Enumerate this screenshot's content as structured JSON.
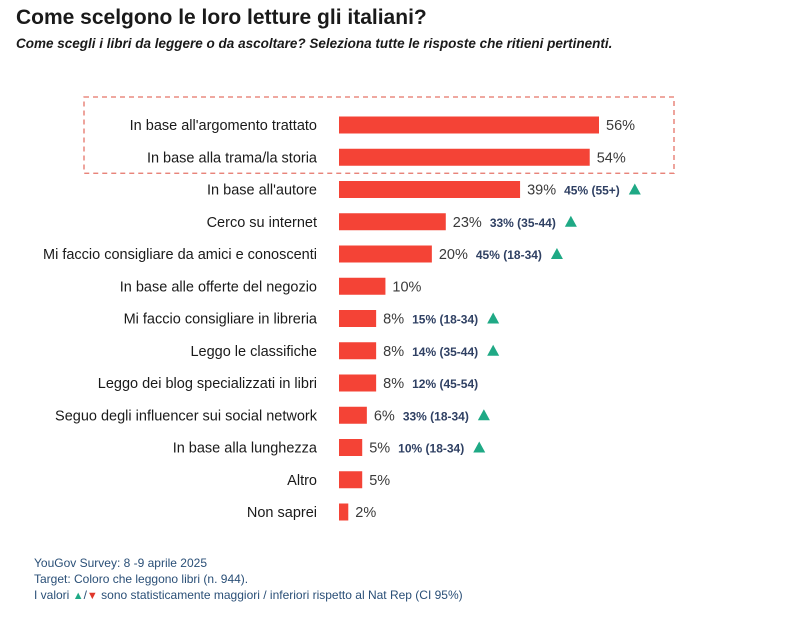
{
  "header": {
    "title": "Come scelgono le loro letture gli italiani?",
    "subtitle": "Come scegli i libri da leggere o da ascoltare? Seleziona tutte le risposte che ritieni pertinenti."
  },
  "colors": {
    "bar": "#f44336",
    "highlight_box": "#e57368",
    "subgroup_text": "#2f4063",
    "up_arrow": "#1fa985",
    "down_arrow": "#e0372a"
  },
  "chart_data": {
    "type": "bar",
    "orientation": "horizontal",
    "title": "Come scelgono le loro letture gli italiani?",
    "subtitle": "Come scegli i libri da leggere o da ascoltare? Seleziona tutte le risposte che ritieni pertinenti.",
    "unit": "%",
    "xlim": [
      0,
      56
    ],
    "categories": [
      "In base all'argomento trattato",
      "In base alla trama/la storia",
      "In base all'autore",
      "Cerco su internet",
      "Mi faccio consigliare da amici e conoscenti",
      "In base alle offerte del negozio",
      "Mi faccio consigliare in libreria",
      "Leggo le classifiche",
      "Leggo dei blog specializzati in libri",
      "Seguo degli influencer sui social network",
      "In base alla lunghezza",
      "Altro",
      "Non saprei"
    ],
    "values": [
      56,
      54,
      39,
      23,
      20,
      10,
      8,
      8,
      8,
      6,
      5,
      5,
      2
    ],
    "value_labels": [
      "56%",
      "54%",
      "39%",
      "23%",
      "20%",
      "10%",
      "8%",
      "8%",
      "8%",
      "6%",
      "5%",
      "5%",
      "2%"
    ],
    "subgroups": [
      null,
      null,
      {
        "label": "45% (55+)",
        "direction": "up"
      },
      {
        "label": "33% (35-44)",
        "direction": "up"
      },
      {
        "label": "45% (18-34)",
        "direction": "up"
      },
      null,
      {
        "label": "15% (18-34)",
        "direction": "up"
      },
      {
        "label": "14% (35-44)",
        "direction": "up"
      },
      {
        "label": "12% (45-54)",
        "direction": null
      },
      {
        "label": "33% (18-34)",
        "direction": "up"
      },
      {
        "label": "10% (18-34)",
        "direction": "up"
      },
      null,
      null
    ],
    "highlighted": [
      0,
      1
    ]
  },
  "footer": {
    "line1": "YouGov Survey: 8 -9 aprile 2025",
    "line2": "Target: Coloro che leggono libri (n. 944).",
    "line3_prefix": "I valori",
    "line3_sep": "/",
    "line3_suffix": "sono statisticamente maggiori / inferiori rispetto al Nat Rep (CI 95%)"
  }
}
